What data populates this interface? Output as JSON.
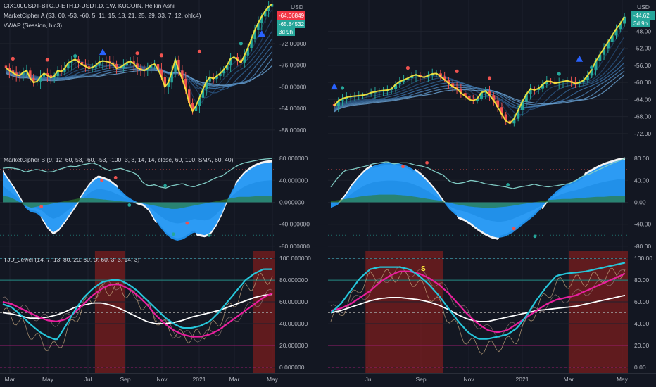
{
  "header": {
    "symbol_line": "CIX100USDT-BTC.D-ETH.D-USDT.D, 1W, KUCOIN, Heikin Ashi",
    "indicator_a": "MarketCipher A (53, 60, -53, -60, 5, 11, 15, 18, 21, 25, 29, 33, 7, 12, ohlc4)",
    "indicator_vwap": "VWAP (Session, hlc3)",
    "indicator_b": "MarketCipher B (9, 12, 60, 53, -60, -53, -100, 3, 3, 14, 14, close, 60, 190, SMA, 60, 40)",
    "indicator_tjd": "TJD_Jewel (14, 7, 13, 80, 20, 60, D, 60, 3, 3, 14, 3)",
    "currency_left": "USD",
    "currency_right": "USD"
  },
  "colors": {
    "background": "#131722",
    "grid": "#1e222d",
    "up_candle": "#26a69a",
    "down_candle": "#ef5350",
    "highlight_yellow": "#ffeb3b",
    "cyan_wave": "#4fc3f7",
    "blue_fill": "#2196f3",
    "magenta": "#e91e9e",
    "teal_line": "#26c6da",
    "overbought_zone": "#7b1d1d",
    "tag_red": "#f23645",
    "tag_green": "#26a69a"
  },
  "chart_data": [
    {
      "panel": "left-price",
      "type": "candlestick",
      "y_ticks": [
        -72,
        -76,
        -80,
        -84,
        -88
      ],
      "y_tick_labels": [
        "-72.00000",
        "-76.00000",
        "-80.00000",
        "-84.00000",
        "-88.00000"
      ],
      "ylim": [
        -91,
        -65
      ],
      "x_tick_labels": [
        "Mar",
        "May",
        "Jul",
        "Sep",
        "Nov",
        "2021",
        "Mar",
        "May"
      ],
      "last_price_tags": [
        "-64.66849",
        "-65.84532",
        "3d 9h"
      ],
      "closes": [
        -76.5,
        -77.0,
        -77.4,
        -77.8,
        -77.9,
        -77.3,
        -77.0,
        -78.4,
        -79.2,
        -79.0,
        -78.1,
        -77.5,
        -77.9,
        -78.3,
        -78.0,
        -77.0,
        -77.2,
        -76.6,
        -75.6,
        -75.2,
        -74.9,
        -75.4,
        -75.9,
        -76.2,
        -76.6,
        -76.4,
        -76.0,
        -75.4,
        -75.2,
        -75.3,
        -75.5,
        -75.8,
        -76.6,
        -76.4,
        -76.0,
        -75.5,
        -75.3,
        -75.7,
        -76.5,
        -76.8,
        -77.0,
        -76.6,
        -76.0,
        -75.8,
        -76.8,
        -78.2,
        -80.0,
        -79.2,
        -77.2,
        -75.0,
        -77.0,
        -78.5,
        -80.5,
        -83.0,
        -84.5,
        -83.5,
        -82.0,
        -80.5,
        -79.0,
        -78.2,
        -78.5,
        -78.0,
        -77.5,
        -76.8,
        -76.0,
        -74.8,
        -74.5,
        -75.0,
        -75.5,
        -74.2,
        -72.8,
        -71.2,
        -69.5,
        -68.2,
        -67.0,
        -66.0,
        -65.2,
        -64.7
      ]
    },
    {
      "panel": "right-price",
      "type": "candlestick",
      "y_ticks": [
        -48,
        -52,
        -56,
        -60,
        -64,
        -68,
        -72
      ],
      "y_tick_labels": [
        "-48.00",
        "-52.00",
        "-56.00",
        "-60.00",
        "-64.00",
        "-68.00",
        "-72.00"
      ],
      "ylim": [
        -75,
        -42
      ],
      "x_tick_labels": [
        "Jul",
        "Sep",
        "Nov",
        "2021",
        "Mar",
        "May"
      ],
      "last_price_tags": [
        "-44.62",
        "3d 9h"
      ],
      "closes": [
        -65.5,
        -64.3,
        -63.8,
        -63.5,
        -63.3,
        -63.2,
        -63.1,
        -63.0,
        -62.8,
        -62.4,
        -62.2,
        -62.0,
        -61.9,
        -61.8,
        -61.5,
        -60.5,
        -59.8,
        -59.4,
        -59.0,
        -58.5,
        -58.2,
        -58.6,
        -58.8,
        -58.4,
        -58.0,
        -57.9,
        -58.6,
        -59.4,
        -60.2,
        -61.0,
        -61.5,
        -62.5,
        -63.2,
        -64.0,
        -64.3,
        -63.8,
        -62.4,
        -62.0,
        -63.0,
        -64.2,
        -65.8,
        -67.5,
        -69.0,
        -69.6,
        -68.5,
        -66.5,
        -64.5,
        -62.8,
        -61.5,
        -61.8,
        -61.4,
        -60.5,
        -59.7,
        -59.8,
        -60.2,
        -60.0,
        -59.8,
        -59.6,
        -59.9,
        -60.3,
        -60.0,
        -59.5,
        -58.4,
        -57.0,
        -55.0,
        -53.5,
        -52.0,
        -50.5,
        -49.0,
        -47.5,
        -46.2,
        -44.6
      ]
    },
    {
      "panel": "left-cipher-b",
      "type": "area",
      "y_ticks": [
        80,
        40,
        0,
        -40,
        -80
      ],
      "y_tick_labels": [
        "80.000000",
        "40.000000",
        "0.000000",
        "-40.000000",
        "-80.000000"
      ],
      "ylim": [
        -84,
        84
      ],
      "wave": [
        55,
        40,
        25,
        8,
        -10,
        -18,
        -20,
        -28,
        -45,
        -55,
        -48,
        -35,
        -20,
        -5,
        10,
        25,
        38,
        45,
        42,
        38,
        30,
        22,
        12,
        5,
        0,
        -3,
        -12,
        -30,
        -45,
        -58,
        -66,
        -70,
        -68,
        -62,
        -55,
        -58,
        -60,
        -55,
        -40,
        -20,
        5,
        25,
        40,
        52,
        60,
        66,
        70,
        72,
        73
      ],
      "money_flow": [
        12,
        10,
        6,
        0,
        -6,
        -10,
        -8,
        -6,
        -4,
        -2,
        0,
        2,
        4,
        6,
        8,
        8,
        7,
        6,
        5,
        4,
        3,
        2,
        1,
        0,
        -1,
        -2,
        -4,
        -6,
        -8,
        -10,
        -12,
        -12,
        -10,
        -8,
        -6,
        -4,
        -2,
        0,
        2,
        4,
        6,
        8,
        10,
        10,
        10,
        11,
        11,
        12,
        12
      ],
      "rsi": [
        62,
        63,
        62,
        60,
        55,
        58,
        60,
        58,
        55,
        56,
        60,
        63,
        66,
        65,
        68,
        70,
        72,
        68,
        62,
        58,
        60,
        62,
        58,
        55,
        50,
        35,
        30,
        32,
        28,
        26,
        30,
        32,
        34,
        30,
        28,
        32,
        35,
        40,
        45,
        48,
        55,
        62,
        68,
        72,
        74,
        76,
        78,
        79,
        80
      ]
    },
    {
      "panel": "right-cipher-b",
      "type": "area",
      "y_ticks": [
        80,
        40,
        0,
        -40,
        -80
      ],
      "y_tick_labels": [
        "80.00",
        "40.00",
        "0.00",
        "-40.00",
        "-80.00"
      ],
      "ylim": [
        -84,
        84
      ],
      "wave": [
        -10,
        -5,
        10,
        30,
        45,
        58,
        66,
        70,
        72,
        72,
        70,
        66,
        58,
        48,
        35,
        20,
        2,
        -14,
        -25,
        -30,
        -38,
        -48,
        -56,
        -62,
        -65,
        -62,
        -55,
        -45,
        -35,
        -25,
        -12,
        5,
        18,
        28,
        35,
        40,
        48,
        55,
        62,
        68,
        72,
        76,
        78
      ],
      "money_flow": [
        2,
        4,
        6,
        8,
        10,
        12,
        13,
        14,
        14,
        14,
        13,
        12,
        10,
        8,
        6,
        4,
        2,
        -1,
        -4,
        -6,
        -8,
        -9,
        -10,
        -10,
        -9,
        -8,
        -6,
        -4,
        -2,
        0,
        2,
        4,
        5,
        6,
        6,
        7,
        8,
        9,
        10,
        10,
        11,
        11,
        12
      ],
      "rsi": [
        28,
        45,
        58,
        60,
        63,
        66,
        70,
        72,
        74,
        70,
        72,
        72,
        68,
        66,
        62,
        55,
        50,
        38,
        34,
        36,
        40,
        38,
        34,
        32,
        30,
        28,
        25,
        28,
        30,
        33,
        30,
        28,
        30,
        32,
        34,
        40,
        48,
        52,
        58,
        64,
        70,
        75,
        80
      ]
    },
    {
      "panel": "left-tjd",
      "type": "line",
      "y_ticks": [
        100,
        80,
        60,
        40,
        20,
        0
      ],
      "y_tick_labels": [
        "100.000000",
        "80.000000",
        "60.000000",
        "40.000000",
        "20.000000",
        "0.000000"
      ],
      "ylim": [
        -4,
        104
      ],
      "teal": [
        58,
        55,
        48,
        40,
        33,
        28,
        25,
        38,
        52,
        64,
        72,
        78,
        80,
        80,
        76,
        70,
        62,
        54,
        46,
        40,
        36,
        36,
        38,
        42,
        50,
        60,
        70,
        80,
        86,
        90,
        90
      ],
      "magenta": [
        60,
        58,
        54,
        50,
        46,
        43,
        42,
        44,
        50,
        58,
        66,
        72,
        76,
        76,
        72,
        66,
        58,
        48,
        40,
        34,
        30,
        28,
        28,
        30,
        34,
        40,
        46,
        52,
        58,
        64,
        68
      ],
      "white": [
        50,
        49,
        47,
        45,
        45,
        46,
        48,
        51,
        55,
        57,
        59,
        59,
        57,
        54,
        50,
        46,
        42,
        40,
        40,
        41,
        43,
        46,
        48,
        50,
        52,
        55,
        58,
        61,
        64,
        66,
        67
      ]
    },
    {
      "panel": "right-tjd",
      "type": "line",
      "y_ticks": [
        100,
        80,
        60,
        40,
        20,
        0
      ],
      "y_tick_labels": [
        "100.00",
        "80.00",
        "60.00",
        "40.00",
        "20.00",
        "0.00"
      ],
      "ylim": [
        -4,
        104
      ],
      "annotation": "S",
      "teal": [
        50,
        58,
        70,
        82,
        90,
        92,
        92,
        92,
        90,
        84,
        76,
        66,
        54,
        42,
        32,
        26,
        26,
        28,
        30,
        36,
        48,
        62,
        74,
        84,
        86,
        87,
        88,
        90,
        92,
        94,
        96
      ],
      "magenta": [
        52,
        54,
        58,
        64,
        70,
        78,
        84,
        88,
        88,
        86,
        82,
        76,
        68,
        58,
        48,
        40,
        34,
        32,
        34,
        40,
        46,
        52,
        58,
        62,
        64,
        66,
        70,
        74,
        78,
        82,
        86
      ],
      "white": [
        50,
        52,
        55,
        58,
        61,
        63,
        64,
        64,
        63,
        62,
        60,
        57,
        53,
        48,
        44,
        42,
        42,
        44,
        46,
        48,
        50,
        52,
        53,
        54,
        55,
        56,
        58,
        60,
        62,
        64,
        66
      ]
    }
  ]
}
